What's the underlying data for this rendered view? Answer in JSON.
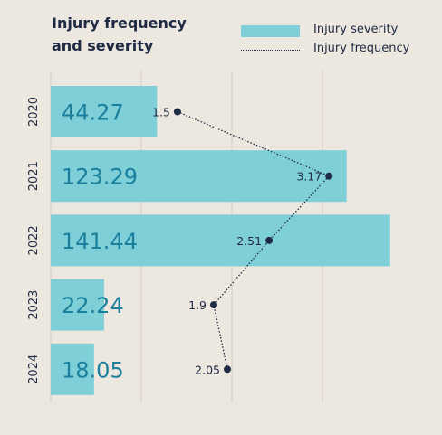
{
  "title_line1": "Injury frequency",
  "title_line2": "and severity",
  "legend": {
    "severity_label": "Injury severity",
    "frequency_label": "Injury frequency"
  },
  "colors": {
    "bar": "#7ecfd8",
    "bar_label": "#1a7f9c",
    "line": "#1f2a44",
    "grid": "#d3cdc3",
    "background": "#ece7df"
  },
  "chart_data": {
    "type": "bar",
    "orientation": "horizontal",
    "categories": [
      "2020",
      "2021",
      "2022",
      "2023",
      "2024"
    ],
    "series": [
      {
        "name": "Injury severity",
        "type": "bar",
        "values": [
          44.27,
          123.29,
          141.44,
          22.24,
          18.05
        ]
      },
      {
        "name": "Injury frequency",
        "type": "line",
        "style": "dotted",
        "values": [
          1.5,
          3.17,
          2.51,
          1.9,
          2.05
        ]
      }
    ],
    "grid": true,
    "legend_position": "top-right"
  }
}
